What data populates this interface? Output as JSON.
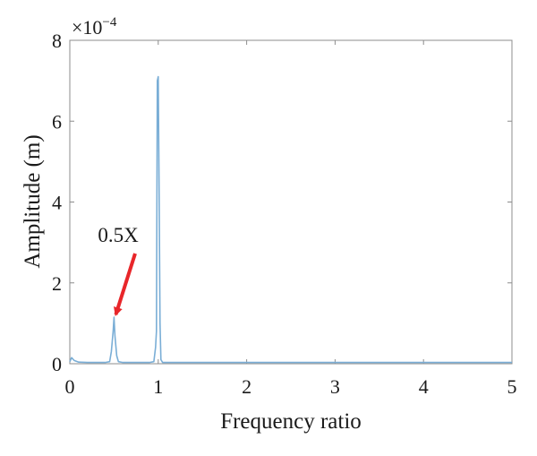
{
  "chart_data": {
    "type": "line",
    "xlabel": "Frequency ratio",
    "ylabel": "Amplitude (m)",
    "y_multiplier_label": "×10",
    "y_multiplier_exponent": "−4",
    "xlim": [
      0,
      5
    ],
    "ylim": [
      0,
      8
    ],
    "x_ticks": [
      0,
      1,
      2,
      3,
      4,
      5
    ],
    "y_ticks": [
      0,
      2,
      4,
      6,
      8
    ],
    "grid": false,
    "series_color": "#7aaed6",
    "annotation": {
      "text": "0.5X",
      "x": 0.5,
      "y": 1.15,
      "arrow_color": "#e8262a"
    },
    "series": [
      {
        "x": [
          0.0,
          0.02,
          0.05,
          0.1,
          0.2,
          0.3,
          0.4,
          0.45,
          0.47,
          0.49,
          0.5,
          0.51,
          0.53,
          0.55,
          0.6,
          0.7,
          0.8,
          0.9,
          0.95,
          0.97,
          0.98,
          0.99,
          1.0,
          1.01,
          1.02,
          1.03,
          1.05,
          1.1,
          1.5,
          2.0,
          2.5,
          3.0,
          3.5,
          4.0,
          4.5,
          5.0
        ],
        "y": [
          0.05,
          0.15,
          0.08,
          0.04,
          0.03,
          0.03,
          0.03,
          0.05,
          0.3,
          0.8,
          1.15,
          0.7,
          0.2,
          0.05,
          0.03,
          0.03,
          0.03,
          0.03,
          0.05,
          0.4,
          0.8,
          7.0,
          7.1,
          4.2,
          1.0,
          0.1,
          0.03,
          0.03,
          0.03,
          0.03,
          0.03,
          0.03,
          0.03,
          0.03,
          0.03,
          0.03
        ]
      }
    ]
  }
}
